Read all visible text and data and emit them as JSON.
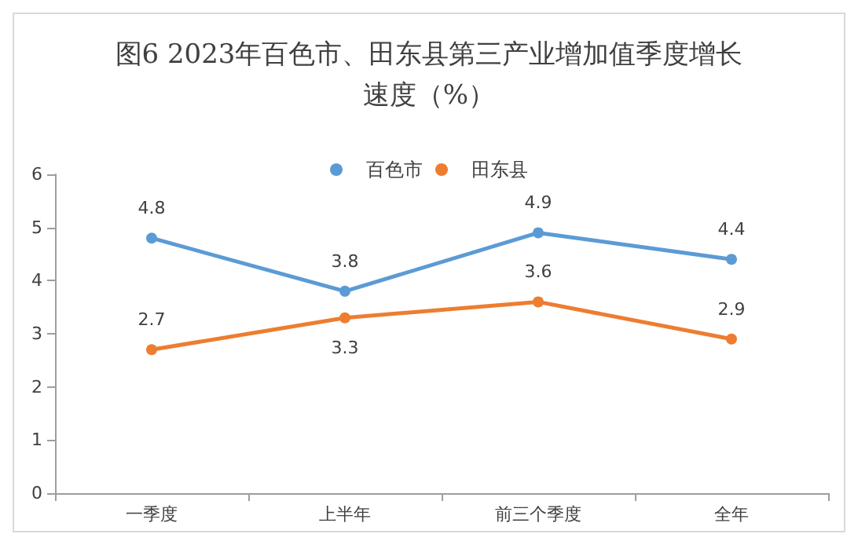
{
  "chart_data": {
    "type": "line",
    "title": "图6 2023年百色市、田东县第三产业增加值季度增长速度（%）",
    "categories": [
      "一季度",
      "上半年",
      "前三个季度",
      "全年"
    ],
    "series": [
      {
        "name": "百色市",
        "color": "#5b9bd5",
        "values": [
          4.8,
          3.8,
          4.9,
          4.4
        ]
      },
      {
        "name": "田东县",
        "color": "#ed7d31",
        "values": [
          2.7,
          3.3,
          3.6,
          2.9
        ]
      }
    ],
    "ylim": [
      0,
      6
    ],
    "yticks": [
      0,
      1,
      2,
      3,
      4,
      5,
      6
    ],
    "grid": false,
    "legend": "top",
    "marker": "circle",
    "line_style": "solid",
    "data_labels": true
  }
}
